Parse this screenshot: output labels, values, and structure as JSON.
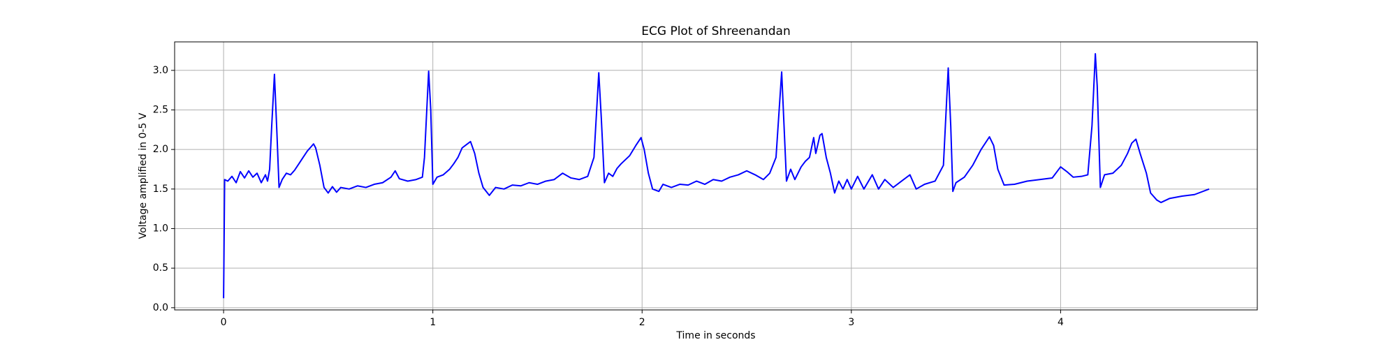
{
  "chart_data": {
    "type": "line",
    "title": "ECG Plot of Shreenandan",
    "x_label": "Time in seconds",
    "y_label": "Voltage amplified in 0-5 V",
    "color": "#0000ff",
    "grid": true,
    "xlim": [
      -0.234,
      4.94
    ],
    "ylim": [
      -0.028,
      3.36
    ],
    "xticks": [
      0,
      1,
      2,
      3,
      4
    ],
    "yticks": [
      {
        "value": 0,
        "label": "0.0"
      },
      0.5,
      {
        "value": 1,
        "label": "1.0"
      },
      1.5,
      {
        "value": 2,
        "label": "2.0"
      },
      2.5,
      {
        "value": 3,
        "label": "3.0"
      }
    ],
    "x": [
      0,
      0.005,
      0.02,
      0.04,
      0.06,
      0.08,
      0.1,
      0.12,
      0.14,
      0.16,
      0.18,
      0.2,
      0.21,
      0.22,
      0.23,
      0.243,
      0.255,
      0.265,
      0.28,
      0.3,
      0.32,
      0.34,
      0.36,
      0.38,
      0.4,
      0.42,
      0.43,
      0.44,
      0.46,
      0.48,
      0.5,
      0.52,
      0.54,
      0.56,
      0.6,
      0.64,
      0.68,
      0.72,
      0.76,
      0.8,
      0.82,
      0.84,
      0.88,
      0.92,
      0.95,
      0.96,
      0.98,
      0.99,
      1.0,
      1.02,
      1.05,
      1.08,
      1.1,
      1.12,
      1.14,
      1.16,
      1.18,
      1.2,
      1.22,
      1.24,
      1.27,
      1.3,
      1.34,
      1.38,
      1.42,
      1.46,
      1.5,
      1.54,
      1.58,
      1.62,
      1.66,
      1.7,
      1.74,
      1.77,
      1.793,
      1.805,
      1.82,
      1.84,
      1.86,
      1.88,
      1.9,
      1.94,
      1.97,
      1.995,
      2.01,
      2.03,
      2.05,
      2.08,
      2.1,
      2.14,
      2.18,
      2.22,
      2.26,
      2.3,
      2.34,
      2.38,
      2.42,
      2.46,
      2.5,
      2.54,
      2.58,
      2.61,
      2.64,
      2.667,
      2.68,
      2.69,
      2.71,
      2.73,
      2.76,
      2.78,
      2.8,
      2.82,
      2.83,
      2.85,
      2.86,
      2.88,
      2.9,
      2.92,
      2.94,
      2.96,
      2.98,
      3.0,
      3.03,
      3.06,
      3.1,
      3.13,
      3.16,
      3.2,
      3.24,
      3.28,
      3.31,
      3.35,
      3.4,
      3.44,
      3.463,
      3.475,
      3.485,
      3.5,
      3.54,
      3.58,
      3.62,
      3.66,
      3.68,
      3.7,
      3.73,
      3.78,
      3.84,
      3.9,
      3.96,
      4.0,
      4.03,
      4.06,
      4.1,
      4.13,
      4.15,
      4.166,
      4.175,
      4.19,
      4.21,
      4.25,
      4.29,
      4.32,
      4.34,
      4.36,
      4.38,
      4.41,
      4.43,
      4.46,
      4.48,
      4.52,
      4.58,
      4.64,
      4.71
    ],
    "values": [
      0.12,
      1.62,
      1.6,
      1.66,
      1.58,
      1.72,
      1.64,
      1.73,
      1.65,
      1.7,
      1.58,
      1.68,
      1.6,
      1.75,
      2.3,
      2.95,
      2.2,
      1.52,
      1.62,
      1.7,
      1.68,
      1.74,
      1.82,
      1.9,
      1.98,
      2.04,
      2.07,
      2.02,
      1.8,
      1.52,
      1.45,
      1.53,
      1.46,
      1.52,
      1.5,
      1.54,
      1.52,
      1.56,
      1.58,
      1.65,
      1.73,
      1.63,
      1.6,
      1.62,
      1.65,
      1.9,
      2.99,
      2.5,
      1.56,
      1.65,
      1.68,
      1.75,
      1.82,
      1.9,
      2.02,
      2.06,
      2.1,
      1.95,
      1.7,
      1.52,
      1.42,
      1.52,
      1.5,
      1.55,
      1.54,
      1.58,
      1.56,
      1.6,
      1.62,
      1.7,
      1.64,
      1.62,
      1.66,
      1.9,
      2.97,
      2.4,
      1.58,
      1.7,
      1.66,
      1.76,
      1.82,
      1.92,
      2.05,
      2.15,
      2.0,
      1.7,
      1.5,
      1.47,
      1.56,
      1.52,
      1.56,
      1.55,
      1.6,
      1.56,
      1.62,
      1.6,
      1.65,
      1.68,
      1.73,
      1.68,
      1.62,
      1.7,
      1.9,
      2.98,
      2.2,
      1.6,
      1.75,
      1.62,
      1.78,
      1.85,
      1.9,
      2.15,
      1.95,
      2.18,
      2.2,
      1.9,
      1.7,
      1.45,
      1.6,
      1.5,
      1.62,
      1.5,
      1.66,
      1.5,
      1.68,
      1.5,
      1.62,
      1.52,
      1.6,
      1.68,
      1.5,
      1.56,
      1.6,
      1.8,
      3.03,
      2.3,
      1.47,
      1.58,
      1.65,
      1.8,
      2.0,
      2.16,
      2.05,
      1.75,
      1.55,
      1.56,
      1.6,
      1.62,
      1.64,
      1.78,
      1.72,
      1.65,
      1.66,
      1.68,
      2.3,
      3.21,
      2.8,
      1.52,
      1.68,
      1.7,
      1.8,
      1.95,
      2.08,
      2.13,
      1.95,
      1.7,
      1.45,
      1.36,
      1.33,
      1.38,
      1.41,
      1.43,
      1.5
    ]
  }
}
